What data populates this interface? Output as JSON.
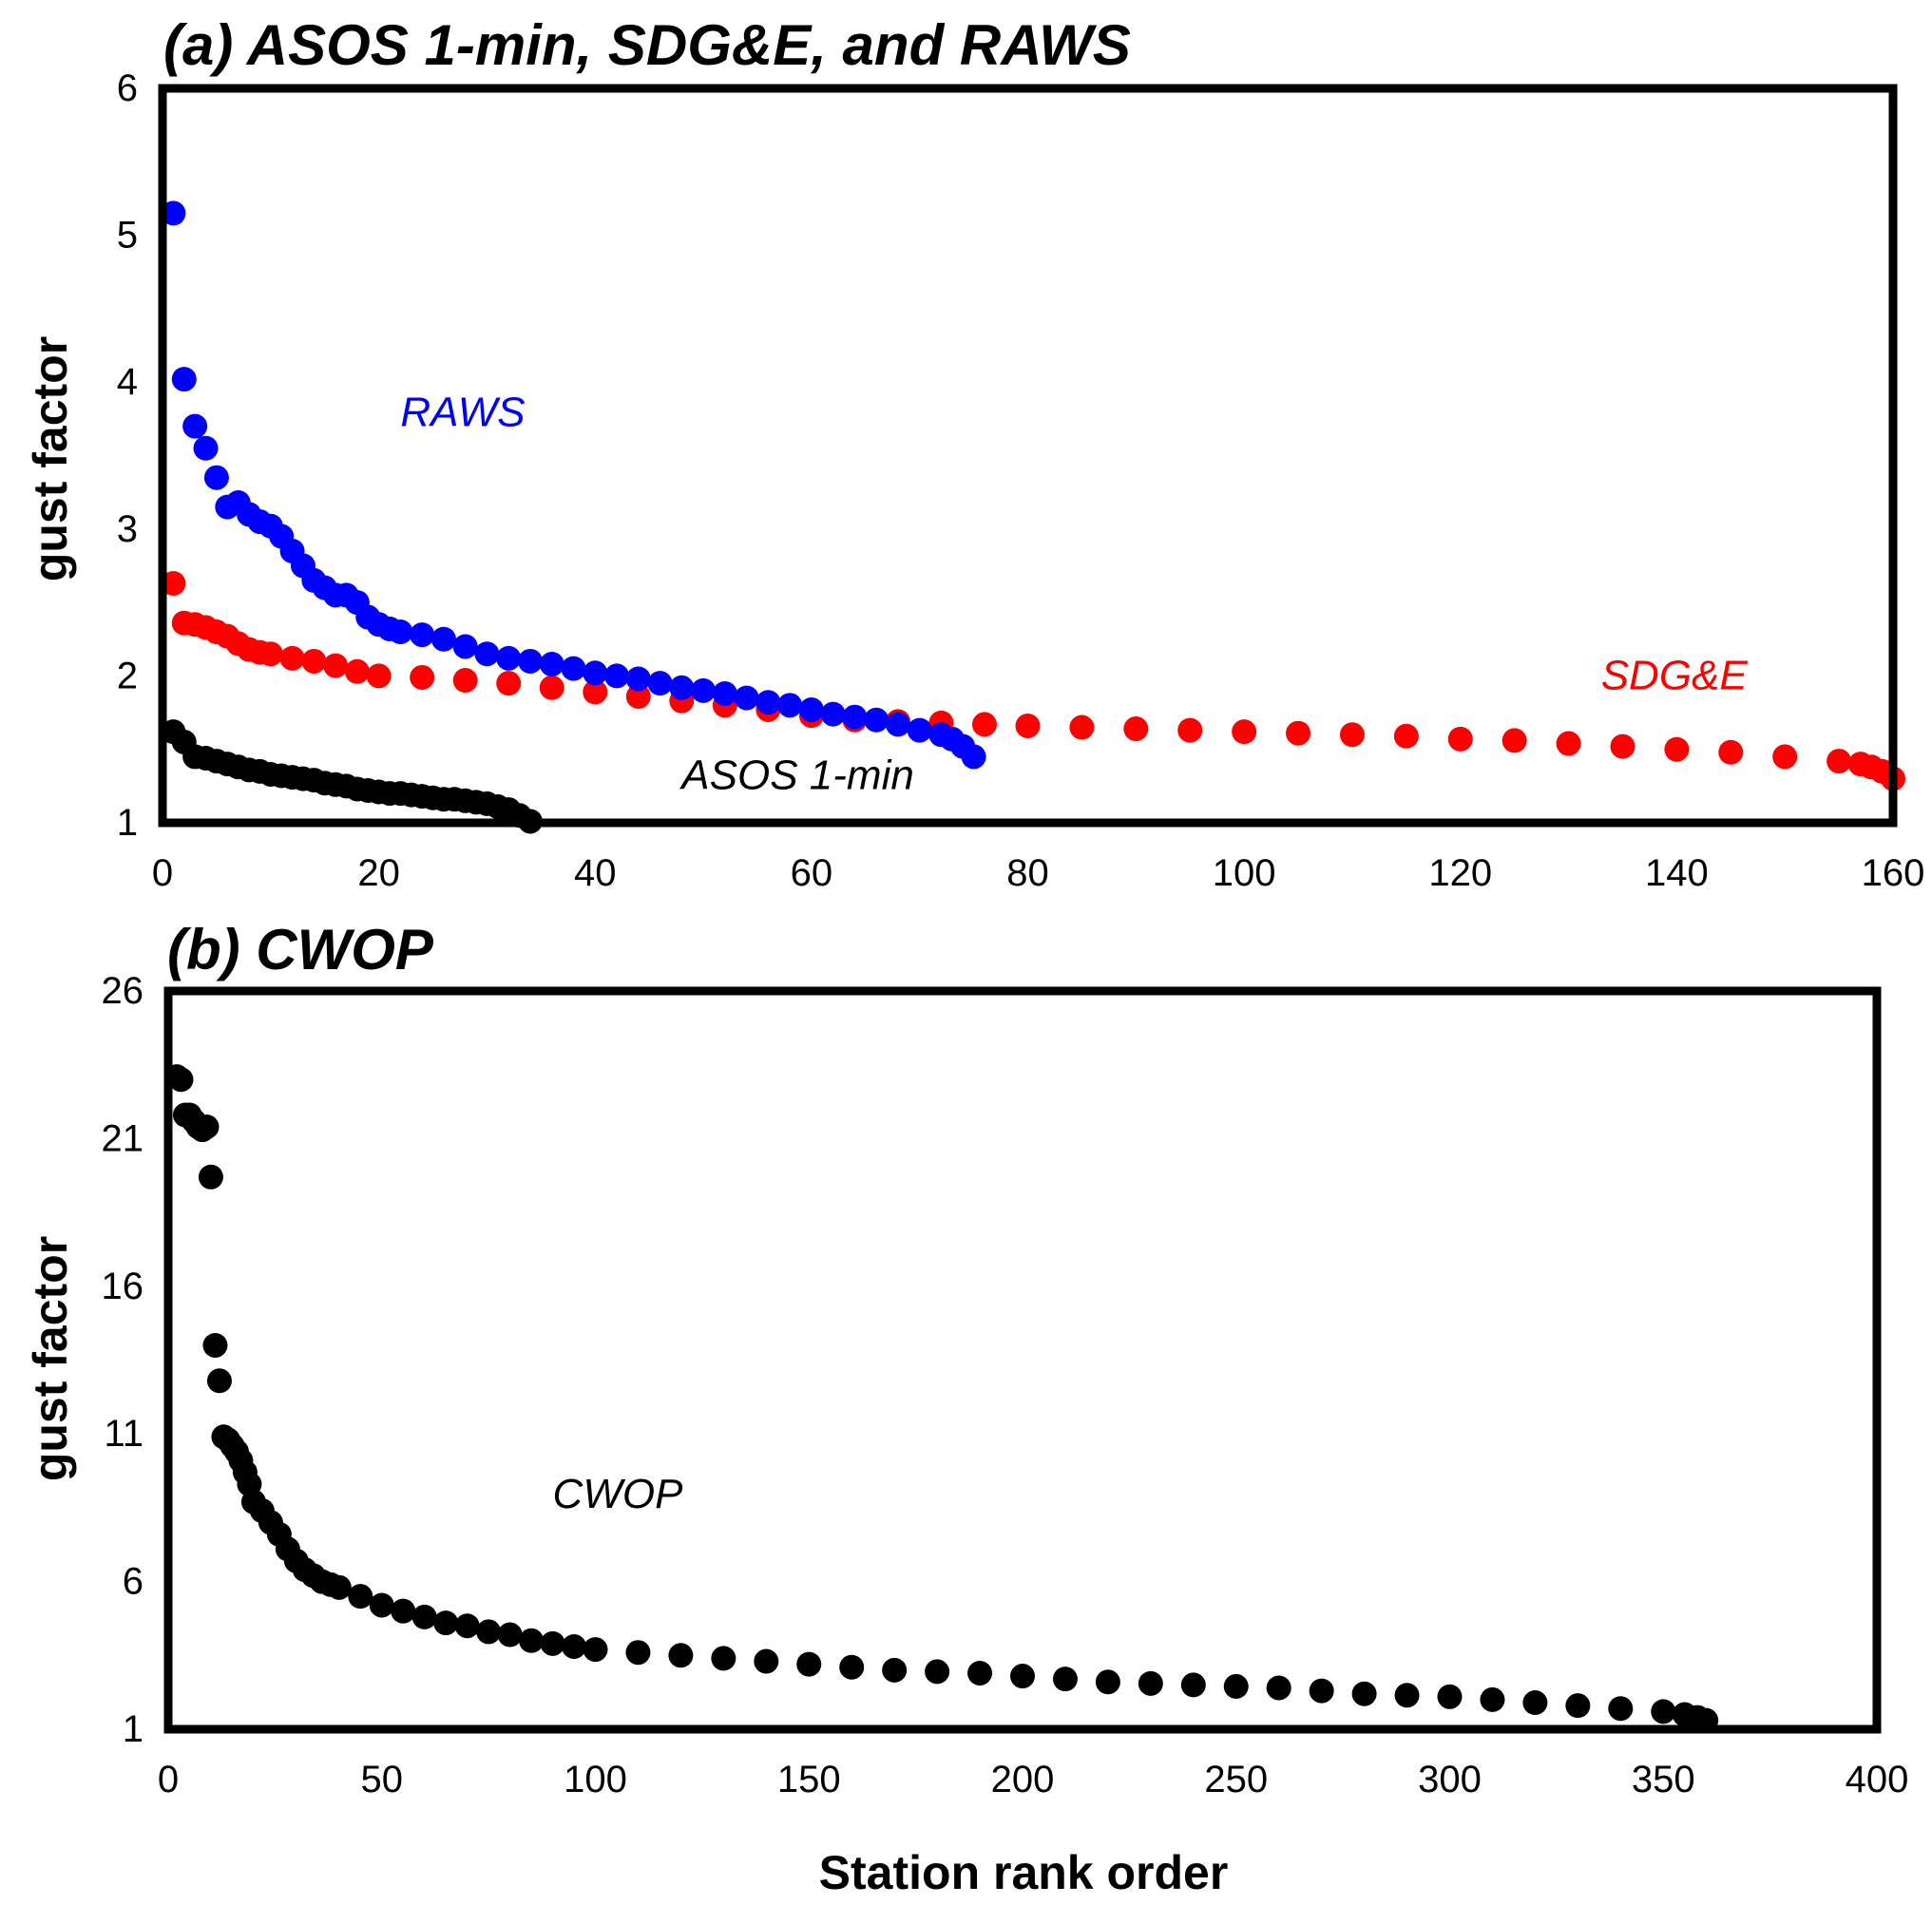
{
  "chart_data": [
    {
      "id": "panel_a",
      "type": "scatter",
      "title": "(a) ASOS 1-min, SDG&E, and RAWS",
      "xlabel": "",
      "ylabel": "gust factor",
      "xlim": [
        0,
        160
      ],
      "ylim": [
        1,
        6
      ],
      "xticks": [
        "0",
        "20",
        "40",
        "60",
        "80",
        "100",
        "120",
        "140",
        "160"
      ],
      "yticks": [
        "1",
        "2",
        "3",
        "4",
        "5",
        "6"
      ],
      "grid": false,
      "series": [
        {
          "name": "ASOS 1-min",
          "color": "#000000",
          "label_pos": {
            "x": 48,
            "y": 1.23
          },
          "x": [
            1,
            2,
            3,
            4,
            5,
            6,
            7,
            8,
            9,
            10,
            11,
            12,
            13,
            14,
            15,
            16,
            17,
            18,
            19,
            20,
            21,
            22,
            23,
            24,
            25,
            26,
            27,
            28,
            29,
            30,
            31,
            32,
            33,
            34
          ],
          "y": [
            1.62,
            1.55,
            1.45,
            1.44,
            1.42,
            1.4,
            1.38,
            1.36,
            1.35,
            1.33,
            1.32,
            1.31,
            1.3,
            1.29,
            1.27,
            1.26,
            1.25,
            1.23,
            1.22,
            1.21,
            1.2,
            1.2,
            1.19,
            1.18,
            1.17,
            1.16,
            1.16,
            1.15,
            1.14,
            1.13,
            1.11,
            1.09,
            1.05,
            1.01
          ]
        },
        {
          "name": "SDG&E",
          "color": "#ff0000",
          "label_pos": {
            "x": 133,
            "y": 1.91
          },
          "x": [
            1,
            2,
            3,
            4,
            5,
            6,
            7,
            8,
            9,
            10,
            12,
            14,
            16,
            18,
            20,
            24,
            28,
            32,
            36,
            40,
            44,
            48,
            52,
            56,
            60,
            64,
            68,
            72,
            76,
            80,
            85,
            90,
            95,
            100,
            105,
            110,
            115,
            120,
            125,
            130,
            135,
            140,
            145,
            150,
            155,
            157,
            158,
            159,
            160
          ],
          "y": [
            2.63,
            2.36,
            2.35,
            2.33,
            2.3,
            2.27,
            2.22,
            2.18,
            2.16,
            2.15,
            2.12,
            2.1,
            2.07,
            2.03,
            2.0,
            1.99,
            1.97,
            1.95,
            1.92,
            1.89,
            1.86,
            1.83,
            1.8,
            1.77,
            1.73,
            1.7,
            1.69,
            1.68,
            1.67,
            1.66,
            1.65,
            1.64,
            1.63,
            1.62,
            1.61,
            1.6,
            1.59,
            1.57,
            1.56,
            1.54,
            1.52,
            1.5,
            1.48,
            1.45,
            1.42,
            1.4,
            1.38,
            1.35,
            1.3
          ]
        },
        {
          "name": "RAWS",
          "color": "#0000ff",
          "label_pos": {
            "x": 22,
            "y": 3.7
          },
          "x": [
            1,
            2,
            3,
            4,
            5,
            6,
            7,
            8,
            9,
            10,
            11,
            12,
            13,
            14,
            15,
            16,
            17,
            18,
            19,
            20,
            21,
            22,
            24,
            26,
            28,
            30,
            32,
            34,
            36,
            38,
            40,
            42,
            44,
            46,
            48,
            50,
            52,
            54,
            56,
            58,
            60,
            62,
            64,
            66,
            68,
            70,
            72,
            73,
            74,
            75
          ],
          "y": [
            5.15,
            4.02,
            3.7,
            3.55,
            3.35,
            3.15,
            3.18,
            3.1,
            3.05,
            3.02,
            2.95,
            2.85,
            2.75,
            2.65,
            2.6,
            2.55,
            2.55,
            2.5,
            2.4,
            2.35,
            2.32,
            2.3,
            2.28,
            2.25,
            2.2,
            2.15,
            2.12,
            2.1,
            2.08,
            2.05,
            2.02,
            2.0,
            1.98,
            1.95,
            1.92,
            1.9,
            1.88,
            1.85,
            1.82,
            1.8,
            1.77,
            1.74,
            1.72,
            1.7,
            1.67,
            1.63,
            1.6,
            1.57,
            1.52,
            1.45
          ]
        }
      ]
    },
    {
      "id": "panel_b",
      "type": "scatter",
      "title": "(b) CWOP",
      "xlabel": "Station rank order",
      "ylabel": "gust factor",
      "xlim": [
        0,
        400
      ],
      "ylim": [
        1,
        26
      ],
      "xticks": [
        "0",
        "50",
        "100",
        "150",
        "200",
        "250",
        "300",
        "350",
        "400"
      ],
      "yticks": [
        "1",
        "6",
        "11",
        "16",
        "21",
        "26"
      ],
      "grid": false,
      "series": [
        {
          "name": "CWOP",
          "color": "#000000",
          "label_pos": {
            "x": 90,
            "y": 8.5
          },
          "x": [
            2,
            3,
            4,
            5,
            6,
            7,
            8,
            9,
            10,
            11,
            12,
            13,
            14,
            15,
            16,
            17,
            18,
            19,
            20,
            22,
            24,
            26,
            28,
            30,
            32,
            34,
            36,
            38,
            40,
            45,
            50,
            55,
            60,
            65,
            70,
            75,
            80,
            85,
            90,
            95,
            100,
            110,
            120,
            130,
            140,
            150,
            160,
            170,
            180,
            190,
            200,
            210,
            220,
            230,
            240,
            250,
            260,
            270,
            280,
            290,
            300,
            310,
            320,
            330,
            340,
            350,
            355,
            358,
            360
          ],
          "y": [
            23.1,
            23.0,
            21.8,
            21.8,
            21.6,
            21.4,
            21.3,
            21.4,
            19.7,
            14.0,
            12.8,
            10.9,
            10.8,
            10.6,
            10.4,
            10.1,
            9.7,
            9.3,
            8.7,
            8.4,
            8.0,
            7.6,
            7.1,
            6.7,
            6.4,
            6.2,
            6.0,
            5.9,
            5.8,
            5.5,
            5.2,
            5.0,
            4.8,
            4.6,
            4.5,
            4.3,
            4.2,
            4.0,
            3.9,
            3.8,
            3.7,
            3.6,
            3.5,
            3.4,
            3.3,
            3.2,
            3.1,
            3.0,
            2.95,
            2.9,
            2.8,
            2.7,
            2.6,
            2.55,
            2.5,
            2.45,
            2.4,
            2.3,
            2.2,
            2.15,
            2.1,
            2.0,
            1.9,
            1.8,
            1.7,
            1.6,
            1.5,
            1.4,
            1.3
          ]
        }
      ]
    }
  ]
}
